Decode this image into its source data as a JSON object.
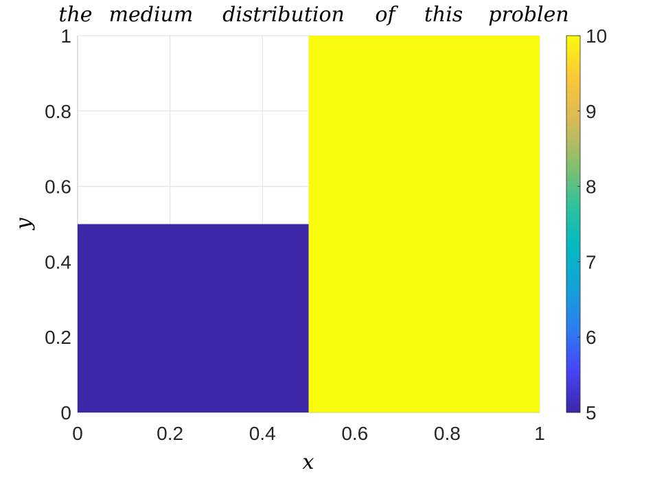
{
  "chart_data": {
    "type": "heatmap",
    "title_words": [
      "the",
      "medium",
      "distribution",
      "of",
      "this",
      "problen"
    ],
    "xlabel": "x",
    "ylabel": "y",
    "xlim": [
      0,
      1
    ],
    "ylim": [
      0,
      1
    ],
    "xticks": [
      "0",
      "0.2",
      "0.4",
      "0.6",
      "0.8",
      "1"
    ],
    "yticks": [
      "0",
      "0.2",
      "0.4",
      "0.6",
      "0.8",
      "1"
    ],
    "grid": true,
    "regions": [
      {
        "x": [
          0,
          0.5
        ],
        "y": [
          0,
          0.5
        ],
        "value": 5,
        "color": "#3e26a8"
      },
      {
        "x": [
          0.5,
          1
        ],
        "y": [
          0,
          1
        ],
        "value": 10,
        "color": "#f9fb0e"
      }
    ],
    "colorbar": {
      "min": 5,
      "max": 10,
      "ticks": [
        "5",
        "6",
        "7",
        "8",
        "9",
        "10"
      ],
      "colormap": "parula",
      "colors": [
        "#3e26a8",
        "#4743f8",
        "#2c7eef",
        "#14a2d7",
        "#02bac2",
        "#33c29a",
        "#8fbe6b",
        "#d9ba56",
        "#fcc737",
        "#f9fb0e"
      ]
    }
  }
}
